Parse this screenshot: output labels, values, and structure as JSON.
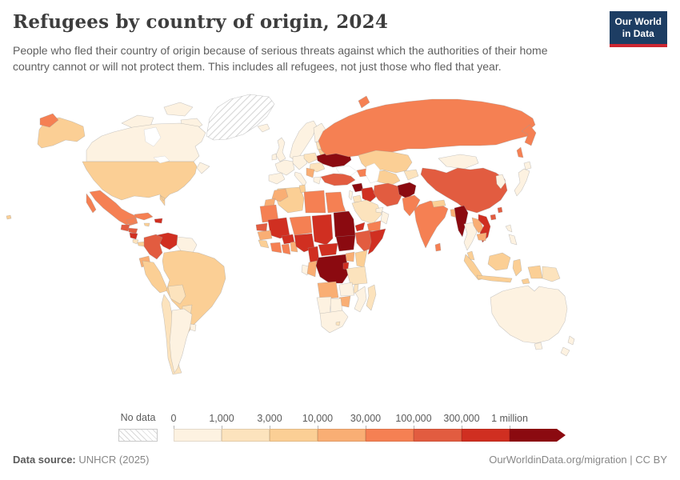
{
  "header": {
    "title": "Refugees by country of origin, 2024",
    "subtitle": "People who fled their country of origin because of serious threats against which the authorities of their home country cannot or will not protect them. This includes all refugees, not just those who fled that year.",
    "logo_line1": "Our World",
    "logo_line2": "in Data",
    "logo_bg": "#1d3d63",
    "logo_accent": "#cd2631"
  },
  "footer": {
    "source_label": "Data source:",
    "source_value": " UNHCR (2025)",
    "credit": "OurWorldinData.org/migration | CC BY"
  },
  "legend": {
    "no_data_label": "No data",
    "tick_labels": [
      "0",
      "1,000",
      "3,000",
      "10,000",
      "30,000",
      "100,000",
      "300,000",
      "1 million"
    ],
    "bucket_colors": [
      "#fdf2e1",
      "#fce3bd",
      "#fbcf95",
      "#f9ae74",
      "#f58053",
      "#e25c40",
      "#d02f21",
      "#8b0a10"
    ]
  },
  "chart_data": {
    "type": "choropleth-map",
    "title": "Refugees by country of origin, 2024",
    "unit": "refugees (people)",
    "scale_type": "log-binned",
    "bins": [
      "0-1,000",
      "1,000-3,000",
      "3,000-10,000",
      "10,000-30,000",
      "30,000-100,000",
      "100,000-300,000",
      "300,000-1 million",
      "1 million+"
    ],
    "legend_position": "bottom",
    "no_data_style": "hatched"
  },
  "map": {
    "regions": {
      "greenland": "no_data",
      "canada": 0,
      "arctic-islands": 0,
      "alaska": 2,
      "chukotka": 4,
      "usa": 2,
      "hawaii": 2,
      "mexico": 4,
      "baja": 4,
      "guatemala": 5,
      "honduras": 5,
      "nicaragua": 6,
      "costa-rica": 1,
      "panama": 2,
      "cuba": 4,
      "jamaica": 2,
      "haiti-dominican": 6,
      "colombia": 5,
      "venezuela": 6,
      "guyana-suriname": 0,
      "ecuador": 3,
      "peru": 2,
      "brazil": 2,
      "bolivia": 1,
      "paraguay": 1,
      "chile": 1,
      "argentina": 0,
      "uruguay": 0,
      "iceland": 0,
      "uk": 0,
      "ireland": 0,
      "scandinavia": 0,
      "finland": 0,
      "baltics": 1,
      "france": 0,
      "germany-central": 0,
      "poland": 1,
      "iberia": 0,
      "italy": 0,
      "balkans": 3,
      "greece": 0,
      "romania-bulgaria": 1,
      "belarus": 2,
      "ukraine": 7,
      "russia": 4,
      "novaya-zemlya": 4,
      "kamchatka": 4,
      "sakhalin": 4,
      "kazakhstan": 2,
      "uzbek-turkmen": 2,
      "kyrgyz-tajik": 1,
      "caucasus": 4,
      "turkey": 5,
      "syria": 7,
      "lebanon-israel": 0,
      "jordan": 1,
      "iraq": 6,
      "iran": 5,
      "afghanistan": 7,
      "pakistan": 4,
      "saudi": 1,
      "yemen": 4,
      "oman": 0,
      "uae-qatar": 0,
      "morocco": 3,
      "western-sahara": 3,
      "algeria": 2,
      "tunisia": 2,
      "libya": 4,
      "egypt": 4,
      "mauritania": 4,
      "senegal": 5,
      "guinea": 3,
      "sierra-leone-liberia": 2,
      "mali": 6,
      "burkina": 6,
      "cote-divoire": 4,
      "ghana": 4,
      "togo-benin": 3,
      "niger": 4,
      "nigeria": 6,
      "chad": 6,
      "sudan": 7,
      "south-sudan": 7,
      "eritrea": 6,
      "djibouti": 3,
      "ethiopia": 5,
      "somalia": 6,
      "cameroon": 6,
      "car": 6,
      "gabon": 0,
      "congo": 3,
      "drc": 7,
      "uganda": 3,
      "kenya": 2,
      "rwanda-burundi": 6,
      "tanzania": 1,
      "angola": 3,
      "zambia": 0,
      "malawi": 1,
      "mozambique": 0,
      "zimbabwe": 3,
      "botswana": 0,
      "namibia": 0,
      "south-africa": 0,
      "lesotho": 1,
      "madagascar": 1,
      "mongolia": 0,
      "china": 5,
      "korea": 0,
      "japan": 0,
      "hokkaido": 0,
      "taiwan": 5,
      "india": 4,
      "nepal": 2,
      "bangladesh": 3,
      "sri-lanka": 4,
      "myanmar": 7,
      "thailand": 0,
      "laos": 3,
      "cambodia": 3,
      "vietnam": 6,
      "hainan": 5,
      "malaysia": 2,
      "sumatra": 2,
      "borneo": 2,
      "java": 2,
      "sulawesi": 2,
      "timor": 2,
      "west-papua": 2,
      "png": 1,
      "philippines-north": 0,
      "philippines-south": 0,
      "australia": 0,
      "tasmania": 0,
      "nz-north": 0,
      "nz-south": 0
    }
  }
}
